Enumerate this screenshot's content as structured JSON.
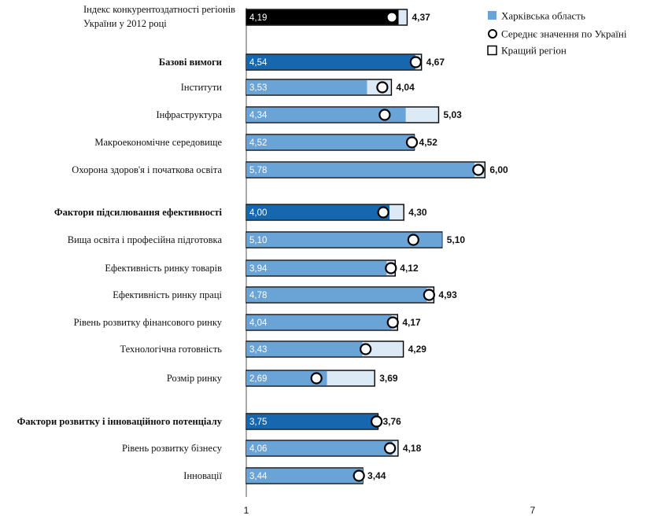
{
  "chart_data": {
    "type": "bar",
    "xlim": [
      1,
      7
    ],
    "x_ticks": [
      "1",
      "7"
    ],
    "colors": {
      "index": "#000000",
      "group": "#1767ae",
      "sub": "#6aa3d6",
      "best_fill": "#dceaf6",
      "best_border": "#000000",
      "average_marker_fill": "#ffffff"
    },
    "legend": {
      "placement": "top-right",
      "entries": [
        {
          "label": "Харківська область",
          "marker": "filled-square"
        },
        {
          "label": "Середнє значення по Україні",
          "marker": "circle"
        },
        {
          "label": "Кращий регіон",
          "marker": "hollow-square"
        }
      ]
    },
    "rows": [
      {
        "label": "Індекс конкурентоздатності регіонів",
        "label2": "України  у 2012 році",
        "kind": "index",
        "value": 4.19,
        "value_label": "4,19",
        "average": 4.05,
        "best": 4.37,
        "best_label": "4,37"
      },
      {
        "label": "Базові вимоги",
        "kind": "group",
        "value": 4.54,
        "value_label": "4,54",
        "average": 4.55,
        "best": 4.67,
        "best_label": "4,67"
      },
      {
        "label": "Інститути",
        "kind": "sub",
        "value": 3.53,
        "value_label": "3,53",
        "average": 3.85,
        "best": 4.04,
        "best_label": "4,04"
      },
      {
        "label": "Інфраструктура",
        "kind": "sub",
        "value": 4.34,
        "value_label": "4,34",
        "average": 3.9,
        "best": 5.03,
        "best_label": "5,03"
      },
      {
        "label": "Макроекономічне  середовище",
        "kind": "sub",
        "value": 4.52,
        "value_label": "4,52",
        "average": 4.47,
        "best": 4.52,
        "best_label": "4,52"
      },
      {
        "label": "Охорона здоров'я і початкова освіта",
        "kind": "sub",
        "value": 5.78,
        "value_label": "5,78",
        "average": 5.86,
        "best": 6.0,
        "best_label": "6,00"
      },
      {
        "label": "Фактори підсилювання ефективності",
        "kind": "group",
        "value": 4.0,
        "value_label": "4,00",
        "average": 3.87,
        "best": 4.3,
        "best_label": "4,30"
      },
      {
        "label": "Вища освіта і професійна підготовка",
        "kind": "sub",
        "value": 5.1,
        "value_label": "5,10",
        "average": 4.5,
        "best": 5.1,
        "best_label": "5,10"
      },
      {
        "label": "Ефективність ринку товарів",
        "kind": "sub",
        "value": 3.94,
        "value_label": "3,94",
        "average": 4.03,
        "best": 4.12,
        "best_label": "4,12"
      },
      {
        "label": "Ефективність ринку праці",
        "kind": "sub",
        "value": 4.78,
        "value_label": "4,78",
        "average": 4.83,
        "best": 4.93,
        "best_label": "4,93"
      },
      {
        "label": "Рівень розвитку фінансового ринку",
        "kind": "sub",
        "value": 4.04,
        "value_label": "4,04",
        "average": 4.07,
        "best": 4.17,
        "best_label": "4,17"
      },
      {
        "label": "Технологічна готовність",
        "kind": "sub",
        "value": 3.43,
        "value_label": "3,43",
        "average": 3.5,
        "best": 4.29,
        "best_label": "4,29"
      },
      {
        "label": "Розмір ринку",
        "kind": "sub",
        "value": 2.69,
        "value_label": "2,69",
        "average": 2.47,
        "best": 3.69,
        "best_label": "3,69"
      },
      {
        "label": "Фактори розвитку і інноваційного потенціалу",
        "kind": "group",
        "value": 3.75,
        "value_label": "3,75",
        "average": 3.73,
        "best": 3.76,
        "best_label": "3,76"
      },
      {
        "label": "Рівень розвитку бізнесу",
        "kind": "sub",
        "value": 4.06,
        "value_label": "4,06",
        "average": 4.01,
        "best": 4.18,
        "best_label": "4,18"
      },
      {
        "label": "Інновації",
        "kind": "sub",
        "value": 3.44,
        "value_label": "3,44",
        "average": 3.36,
        "best": 3.44,
        "best_label": "3,44"
      }
    ]
  }
}
